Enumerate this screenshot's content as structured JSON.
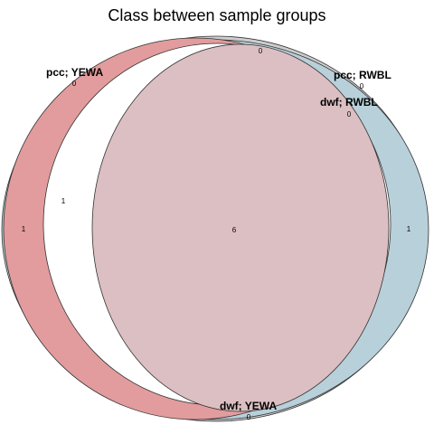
{
  "title": "Class between sample groups",
  "sets": [
    {
      "id": "pcc_yewa",
      "label": "pcc; YEWA",
      "color": "#d47476"
    },
    {
      "id": "pcc_rwbl",
      "label": "pcc; RWBL",
      "color": "#8db1c2"
    },
    {
      "id": "dwf_rwbl",
      "label": "dwf; RWBL",
      "color": "#d7b5b9"
    },
    {
      "id": "dwf_yewa",
      "label": "dwf; YEWA",
      "color": "#c8c8c8"
    }
  ],
  "regions": [
    {
      "id": "pcc_yewa_only",
      "count": "1"
    },
    {
      "id": "pcc_yewa_dwf_yewa",
      "count": "1"
    },
    {
      "id": "all_four",
      "count": "6"
    },
    {
      "id": "pcc_rwbl_only",
      "count": "1"
    },
    {
      "id": "top_gap",
      "count": "0"
    },
    {
      "id": "pcc_yewa_label_count",
      "count": "0"
    },
    {
      "id": "pcc_rwbl_label_count",
      "count": "0"
    },
    {
      "id": "dwf_rwbl_label_count",
      "count": "0"
    },
    {
      "id": "bottom_count",
      "count": "0"
    }
  ]
}
